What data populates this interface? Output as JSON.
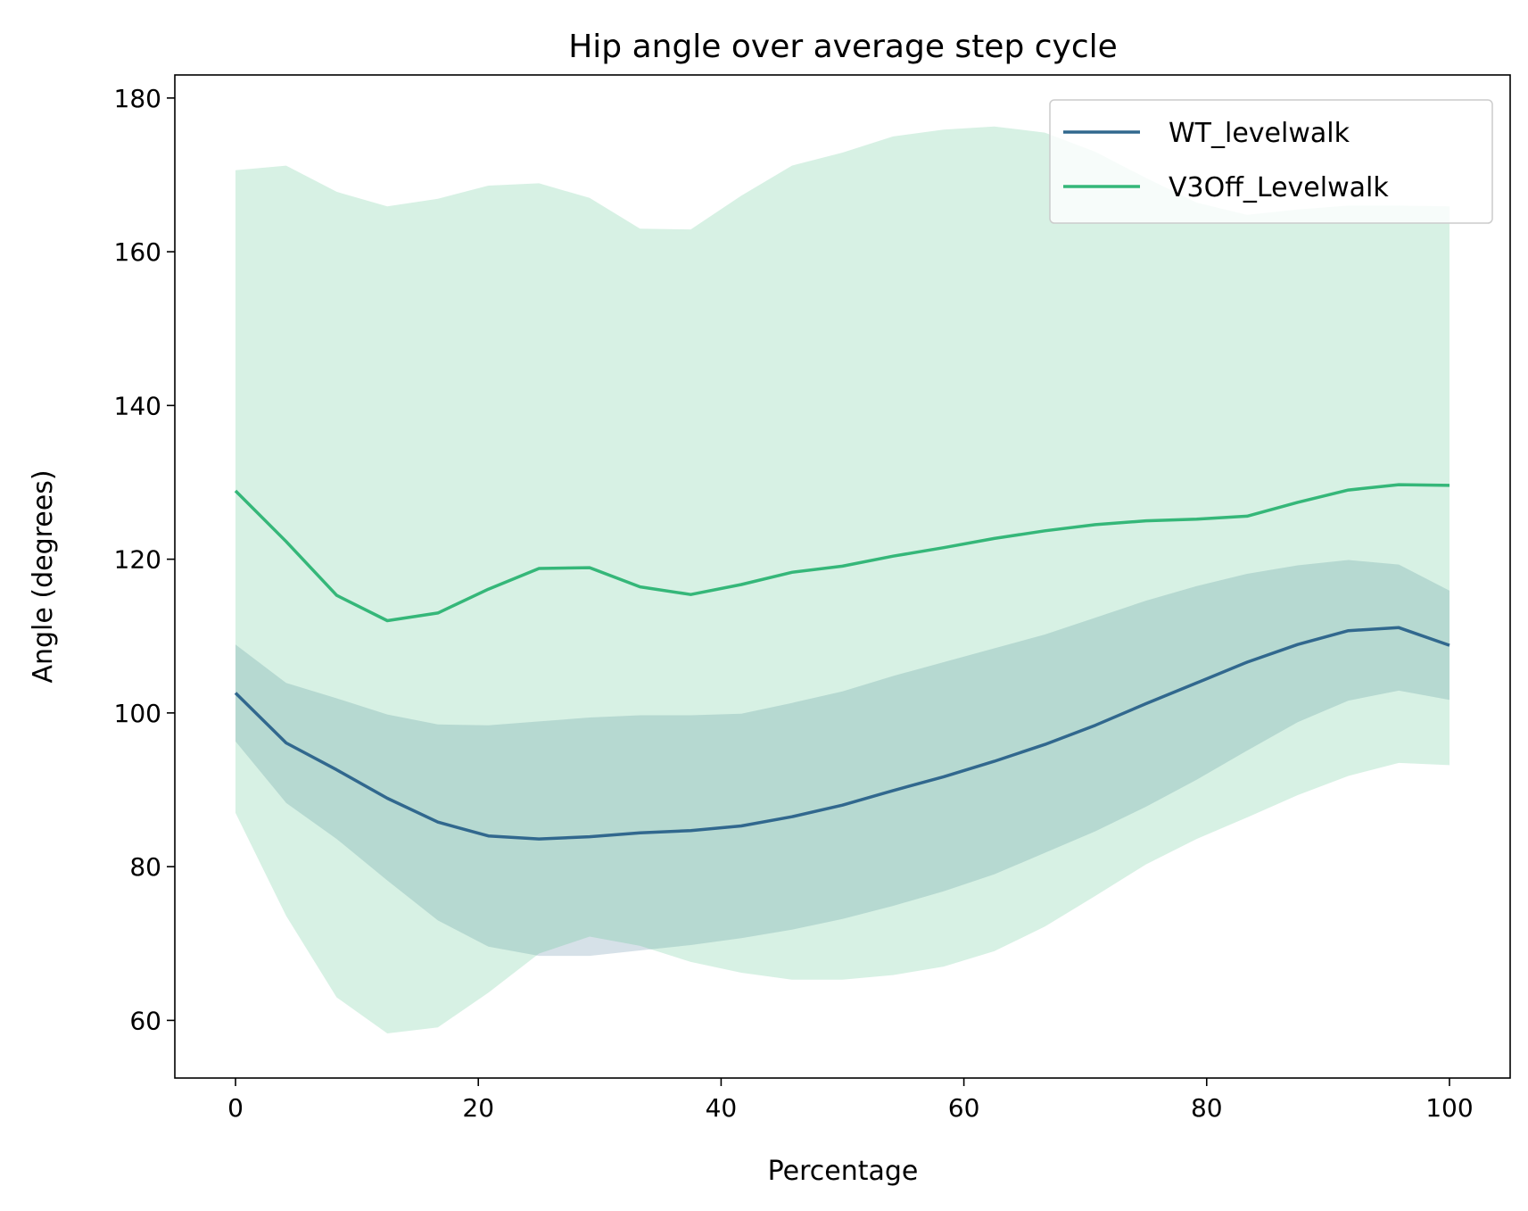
{
  "chart_data": {
    "type": "line",
    "title": "Hip angle over average step cycle",
    "xlabel": "Percentage",
    "ylabel": "Angle (degrees)",
    "xlim": [
      -5,
      105
    ],
    "ylim": [
      52.5,
      183
    ],
    "xticks": [
      0,
      20,
      40,
      60,
      80,
      100
    ],
    "yticks": [
      60,
      80,
      100,
      120,
      140,
      160,
      180
    ],
    "grid": false,
    "legend_position": "top-right",
    "x": [
      0,
      4.17,
      8.33,
      12.5,
      16.67,
      20.83,
      25,
      29.17,
      33.33,
      37.5,
      41.67,
      45.83,
      50,
      54.17,
      58.33,
      62.5,
      66.67,
      70.83,
      75,
      79.17,
      83.33,
      87.5,
      91.67,
      95.83,
      100
    ],
    "series": [
      {
        "name": "WT_levelwalk",
        "color": "#31688e",
        "band_color": "#31688e",
        "values": [
          102.6,
          96.1,
          92.6,
          88.9,
          85.8,
          84.0,
          83.6,
          83.9,
          84.4,
          84.7,
          85.3,
          86.5,
          88.0,
          89.9,
          91.7,
          93.7,
          95.9,
          98.4,
          101.2,
          103.9,
          106.6,
          108.9,
          110.7,
          111.1,
          108.8
        ],
        "lower": [
          96.3,
          88.3,
          83.6,
          78.2,
          73.0,
          69.6,
          68.4,
          68.4,
          69.1,
          69.8,
          70.7,
          71.8,
          73.2,
          74.9,
          76.8,
          79.0,
          81.8,
          84.6,
          87.8,
          91.3,
          95.1,
          98.8,
          101.6,
          102.9,
          101.7
        ],
        "upper": [
          108.9,
          103.9,
          101.9,
          99.8,
          98.5,
          98.4,
          98.9,
          99.4,
          99.7,
          99.7,
          99.9,
          101.3,
          102.8,
          104.8,
          106.6,
          108.4,
          110.2,
          112.4,
          114.6,
          116.5,
          118.1,
          119.2,
          119.9,
          119.3,
          115.9
        ]
      },
      {
        "name": "V3Off_Levelwalk",
        "color": "#35b779",
        "band_color": "#35b779",
        "values": [
          128.9,
          122.3,
          115.3,
          112.0,
          113.0,
          116.1,
          118.8,
          118.9,
          116.4,
          115.4,
          116.7,
          118.3,
          119.1,
          120.4,
          121.5,
          122.7,
          123.7,
          124.5,
          125.0,
          125.2,
          125.6,
          127.4,
          129.0,
          129.7,
          129.6
        ],
        "lower": [
          87.0,
          73.6,
          63.0,
          58.3,
          59.1,
          63.6,
          68.7,
          70.9,
          69.7,
          67.6,
          66.2,
          65.3,
          65.3,
          65.9,
          67.0,
          69.0,
          72.2,
          76.2,
          80.3,
          83.6,
          86.4,
          89.3,
          91.8,
          93.5,
          93.2
        ],
        "upper": [
          170.6,
          171.2,
          167.8,
          165.9,
          166.9,
          168.6,
          168.9,
          167.0,
          163.0,
          162.9,
          167.3,
          171.2,
          172.9,
          175.0,
          175.9,
          176.3,
          175.5,
          173.0,
          169.6,
          166.4,
          164.8,
          165.5,
          166.0,
          166.0,
          165.9
        ]
      }
    ]
  }
}
